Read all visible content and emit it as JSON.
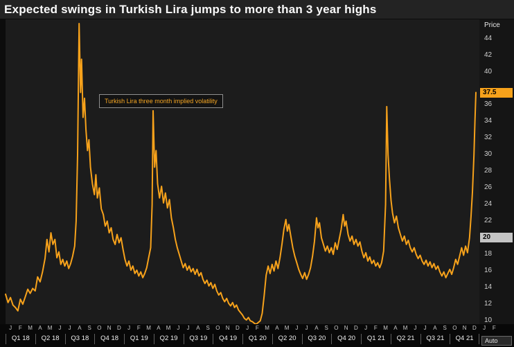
{
  "title": "Expected swings in Turkish Lira jumps to more than 3 year highs",
  "axis": {
    "y_title": "Price",
    "auto_label": "Auto"
  },
  "annotation": {
    "label": "Turkish Lira three month implied volatility"
  },
  "colors": {
    "line": "#f7a21b",
    "last_badge_bg": "#f7a21b",
    "highlight_badge_bg": "#c4c4c4",
    "background": "#0c0c0c",
    "plot_background": "#1c1c1c"
  },
  "chart_data": {
    "type": "line",
    "title": "Expected swings in Turkish Lira jumps to more than 3 year highs",
    "series": [
      {
        "name": "Turkish Lira three month implied volatility",
        "color": "#f7a21b"
      }
    ],
    "ylabel": "Price",
    "ylim": [
      9.6,
      46.3
    ],
    "y_ticks": [
      44,
      42,
      40,
      36,
      34,
      32,
      30,
      28,
      26,
      24,
      22,
      18,
      16,
      14,
      12,
      10
    ],
    "badges": [
      {
        "label": "37.5",
        "value": 37.5,
        "style": "last"
      },
      {
        "label": "20",
        "value": 20,
        "style": "highlight"
      }
    ],
    "x_domain_months": 48,
    "x_unit": "months since Jan 2018",
    "legend_position": "annotation-box",
    "grid": false,
    "month_letters": [
      "J",
      "F",
      "M",
      "A",
      "M",
      "J",
      "J",
      "A",
      "S",
      "O",
      "N",
      "D",
      "J",
      "F",
      "M",
      "A",
      "M",
      "J",
      "J",
      "A",
      "S",
      "O",
      "N",
      "D",
      "J",
      "F",
      "M",
      "A",
      "M",
      "J",
      "J",
      "A",
      "S",
      "O",
      "N",
      "D",
      "J",
      "F",
      "M",
      "A",
      "M",
      "J",
      "J",
      "A",
      "S",
      "O",
      "N",
      "D",
      "J",
      "F"
    ],
    "quarter_labels": [
      "Q1 18",
      "Q2 18",
      "Q3 18",
      "Q4 18",
      "Q1 19",
      "Q2 19",
      "Q3 19",
      "Q4 19",
      "Q1 20",
      "Q2 20",
      "Q3 20",
      "Q4 20",
      "Q1 21",
      "Q2 21",
      "Q3 21",
      "Q4 21"
    ],
    "points": [
      [
        0.0,
        13.2
      ],
      [
        0.25,
        12.2
      ],
      [
        0.5,
        12.8
      ],
      [
        0.75,
        11.9
      ],
      [
        1.0,
        11.6
      ],
      [
        1.25,
        11.2
      ],
      [
        1.5,
        12.6
      ],
      [
        1.75,
        12.0
      ],
      [
        2.0,
        12.9
      ],
      [
        2.25,
        13.8
      ],
      [
        2.5,
        13.3
      ],
      [
        2.75,
        13.9
      ],
      [
        3.0,
        13.6
      ],
      [
        3.25,
        15.3
      ],
      [
        3.5,
        14.7
      ],
      [
        3.75,
        15.9
      ],
      [
        4.0,
        17.5
      ],
      [
        4.2,
        19.8
      ],
      [
        4.4,
        18.3
      ],
      [
        4.6,
        20.6
      ],
      [
        4.8,
        19.2
      ],
      [
        5.0,
        19.8
      ],
      [
        5.2,
        17.6
      ],
      [
        5.4,
        18.3
      ],
      [
        5.6,
        16.8
      ],
      [
        5.8,
        17.4
      ],
      [
        6.0,
        16.6
      ],
      [
        6.2,
        17.2
      ],
      [
        6.4,
        16.3
      ],
      [
        6.6,
        16.9
      ],
      [
        6.8,
        17.8
      ],
      [
        7.0,
        19.0
      ],
      [
        7.15,
        22.0
      ],
      [
        7.3,
        30.0
      ],
      [
        7.45,
        45.8
      ],
      [
        7.6,
        37.5
      ],
      [
        7.7,
        41.5
      ],
      [
        7.85,
        34.5
      ],
      [
        8.0,
        36.8
      ],
      [
        8.15,
        33.0
      ],
      [
        8.3,
        30.5
      ],
      [
        8.45,
        31.8
      ],
      [
        8.6,
        28.5
      ],
      [
        8.8,
        26.5
      ],
      [
        9.0,
        25.2
      ],
      [
        9.15,
        27.6
      ],
      [
        9.3,
        24.8
      ],
      [
        9.5,
        26.0
      ],
      [
        9.7,
        23.5
      ],
      [
        9.9,
        22.8
      ],
      [
        10.1,
        21.4
      ],
      [
        10.3,
        22.0
      ],
      [
        10.5,
        20.6
      ],
      [
        10.7,
        21.2
      ],
      [
        10.9,
        19.8
      ],
      [
        11.1,
        19.2
      ],
      [
        11.3,
        20.4
      ],
      [
        11.5,
        19.4
      ],
      [
        11.7,
        20.0
      ],
      [
        11.9,
        18.6
      ],
      [
        12.1,
        17.4
      ],
      [
        12.3,
        16.6
      ],
      [
        12.5,
        17.2
      ],
      [
        12.7,
        16.1
      ],
      [
        12.9,
        16.6
      ],
      [
        13.1,
        15.7
      ],
      [
        13.3,
        16.1
      ],
      [
        13.5,
        15.4
      ],
      [
        13.7,
        15.9
      ],
      [
        13.9,
        15.2
      ],
      [
        14.1,
        15.7
      ],
      [
        14.3,
        16.4
      ],
      [
        14.5,
        17.6
      ],
      [
        14.7,
        18.8
      ],
      [
        14.85,
        24.0
      ],
      [
        14.95,
        35.3
      ],
      [
        15.1,
        28.5
      ],
      [
        15.25,
        30.5
      ],
      [
        15.4,
        26.5
      ],
      [
        15.6,
        24.8
      ],
      [
        15.8,
        26.2
      ],
      [
        16.0,
        24.2
      ],
      [
        16.2,
        25.4
      ],
      [
        16.4,
        23.6
      ],
      [
        16.6,
        24.6
      ],
      [
        16.8,
        22.4
      ],
      [
        17.0,
        21.2
      ],
      [
        17.2,
        19.8
      ],
      [
        17.4,
        18.8
      ],
      [
        17.6,
        18.0
      ],
      [
        17.8,
        17.2
      ],
      [
        18.0,
        16.4
      ],
      [
        18.2,
        16.9
      ],
      [
        18.4,
        16.1
      ],
      [
        18.6,
        16.6
      ],
      [
        18.8,
        15.9
      ],
      [
        19.0,
        16.3
      ],
      [
        19.2,
        15.6
      ],
      [
        19.4,
        16.2
      ],
      [
        19.6,
        15.4
      ],
      [
        19.8,
        15.8
      ],
      [
        20.0,
        15.0
      ],
      [
        20.2,
        14.5
      ],
      [
        20.4,
        14.9
      ],
      [
        20.6,
        14.2
      ],
      [
        20.8,
        14.6
      ],
      [
        21.0,
        13.9
      ],
      [
        21.2,
        14.4
      ],
      [
        21.4,
        13.6
      ],
      [
        21.6,
        13.1
      ],
      [
        21.8,
        13.4
      ],
      [
        22.0,
        12.7
      ],
      [
        22.2,
        12.3
      ],
      [
        22.4,
        12.7
      ],
      [
        22.6,
        12.1
      ],
      [
        22.8,
        11.8
      ],
      [
        23.0,
        12.2
      ],
      [
        23.2,
        11.6
      ],
      [
        23.4,
        11.9
      ],
      [
        23.6,
        11.3
      ],
      [
        23.8,
        11.0
      ],
      [
        24.0,
        10.7
      ],
      [
        24.2,
        10.3
      ],
      [
        24.4,
        10.1
      ],
      [
        24.6,
        10.4
      ],
      [
        24.8,
        10.0
      ],
      [
        25.0,
        9.9
      ],
      [
        25.2,
        9.7
      ],
      [
        25.4,
        9.6
      ],
      [
        25.6,
        9.8
      ],
      [
        25.8,
        10.0
      ],
      [
        26.0,
        10.9
      ],
      [
        26.2,
        13.0
      ],
      [
        26.4,
        15.5
      ],
      [
        26.6,
        16.6
      ],
      [
        26.8,
        15.7
      ],
      [
        27.0,
        16.8
      ],
      [
        27.2,
        16.0
      ],
      [
        27.4,
        17.2
      ],
      [
        27.6,
        16.3
      ],
      [
        27.8,
        17.6
      ],
      [
        28.0,
        19.2
      ],
      [
        28.2,
        21.0
      ],
      [
        28.4,
        22.2
      ],
      [
        28.55,
        20.8
      ],
      [
        28.7,
        21.6
      ],
      [
        28.9,
        20.2
      ],
      [
        29.1,
        18.8
      ],
      [
        29.3,
        17.8
      ],
      [
        29.5,
        17.0
      ],
      [
        29.7,
        16.2
      ],
      [
        29.9,
        15.6
      ],
      [
        30.1,
        15.1
      ],
      [
        30.3,
        15.8
      ],
      [
        30.5,
        15.0
      ],
      [
        30.7,
        15.6
      ],
      [
        30.9,
        16.4
      ],
      [
        31.1,
        17.8
      ],
      [
        31.3,
        19.6
      ],
      [
        31.5,
        22.4
      ],
      [
        31.65,
        21.2
      ],
      [
        31.8,
        21.8
      ],
      [
        32.0,
        20.0
      ],
      [
        32.2,
        19.2
      ],
      [
        32.4,
        18.4
      ],
      [
        32.6,
        19.0
      ],
      [
        32.8,
        18.2
      ],
      [
        33.0,
        18.8
      ],
      [
        33.2,
        18.0
      ],
      [
        33.4,
        19.4
      ],
      [
        33.6,
        18.6
      ],
      [
        33.8,
        19.8
      ],
      [
        34.0,
        21.0
      ],
      [
        34.2,
        22.8
      ],
      [
        34.35,
        21.4
      ],
      [
        34.5,
        22.0
      ],
      [
        34.7,
        20.4
      ],
      [
        34.9,
        19.6
      ],
      [
        35.1,
        20.2
      ],
      [
        35.3,
        19.2
      ],
      [
        35.5,
        19.8
      ],
      [
        35.7,
        19.0
      ],
      [
        35.9,
        19.5
      ],
      [
        36.1,
        18.4
      ],
      [
        36.3,
        17.6
      ],
      [
        36.5,
        18.2
      ],
      [
        36.7,
        17.2
      ],
      [
        36.9,
        17.7
      ],
      [
        37.1,
        16.9
      ],
      [
        37.3,
        17.3
      ],
      [
        37.5,
        16.6
      ],
      [
        37.7,
        17.0
      ],
      [
        37.9,
        16.4
      ],
      [
        38.1,
        17.0
      ],
      [
        38.3,
        18.4
      ],
      [
        38.5,
        24.0
      ],
      [
        38.62,
        35.8
      ],
      [
        38.75,
        30.0
      ],
      [
        38.9,
        27.0
      ],
      [
        39.05,
        24.5
      ],
      [
        39.2,
        23.0
      ],
      [
        39.4,
        21.8
      ],
      [
        39.6,
        22.6
      ],
      [
        39.8,
        21.2
      ],
      [
        40.0,
        20.4
      ],
      [
        40.2,
        19.6
      ],
      [
        40.4,
        20.2
      ],
      [
        40.6,
        19.2
      ],
      [
        40.8,
        19.7
      ],
      [
        41.0,
        18.8
      ],
      [
        41.2,
        18.3
      ],
      [
        41.4,
        18.8
      ],
      [
        41.6,
        18.0
      ],
      [
        41.8,
        17.5
      ],
      [
        42.0,
        17.9
      ],
      [
        42.2,
        17.2
      ],
      [
        42.4,
        16.8
      ],
      [
        42.6,
        17.3
      ],
      [
        42.8,
        16.6
      ],
      [
        43.0,
        17.1
      ],
      [
        43.2,
        16.4
      ],
      [
        43.4,
        16.9
      ],
      [
        43.6,
        16.2
      ],
      [
        43.8,
        16.6
      ],
      [
        44.0,
        15.9
      ],
      [
        44.2,
        15.4
      ],
      [
        44.4,
        15.9
      ],
      [
        44.6,
        15.2
      ],
      [
        44.8,
        15.7
      ],
      [
        45.0,
        16.2
      ],
      [
        45.2,
        15.6
      ],
      [
        45.4,
        16.4
      ],
      [
        45.6,
        17.4
      ],
      [
        45.8,
        16.8
      ],
      [
        46.0,
        17.8
      ],
      [
        46.2,
        18.8
      ],
      [
        46.4,
        17.9
      ],
      [
        46.6,
        19.0
      ],
      [
        46.8,
        18.2
      ],
      [
        47.0,
        20.0
      ],
      [
        47.15,
        22.5
      ],
      [
        47.3,
        25.5
      ],
      [
        47.45,
        30.0
      ],
      [
        47.55,
        34.0
      ],
      [
        47.65,
        37.5
      ]
    ]
  }
}
